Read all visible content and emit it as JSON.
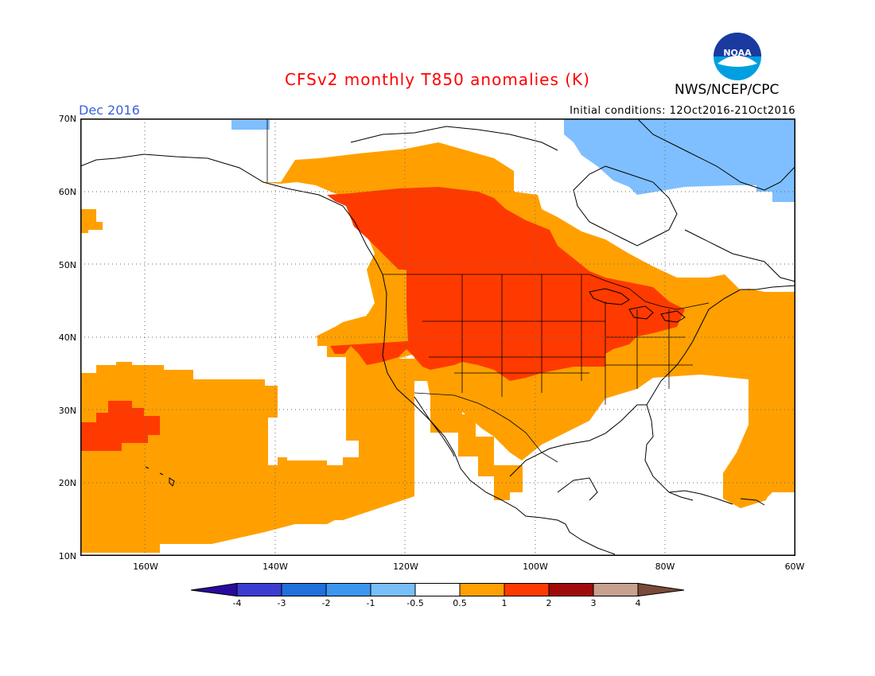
{
  "header": {
    "title": "CFSv2 monthly T850 anomalies (K)",
    "month": "Dec 2016",
    "initial_conditions": "Initial conditions: 12Oct2016-21Oct2016",
    "org": "NWS/NCEP/CPC",
    "logo_text": "NOAA"
  },
  "colors": {
    "title": "#ff0000",
    "month": "#3a5fe0",
    "c_0p5_1": "#ffa000",
    "c_1_2": "#ff3a00",
    "c_neg_0p5_neg_1": "#7fbfff",
    "land_line": "#000000"
  },
  "axes": {
    "lat_labels": [
      "70N",
      "60N",
      "50N",
      "40N",
      "30N",
      "20N",
      "10N"
    ],
    "lon_labels": [
      "160W",
      "140W",
      "120W",
      "100W",
      "80W",
      "60W"
    ]
  },
  "colorbar": {
    "labels": [
      "-4",
      "-3",
      "-2",
      "-1",
      "-0.5",
      "0.5",
      "1",
      "2",
      "3",
      "4"
    ],
    "colors": [
      "#2a0a9c",
      "#3c3cd0",
      "#1f6fdc",
      "#3c96f0",
      "#78bef8",
      "#ffffff",
      "#ffa000",
      "#ff3a00",
      "#a00a0a",
      "#c8a090",
      "#7a4a3a"
    ]
  }
}
